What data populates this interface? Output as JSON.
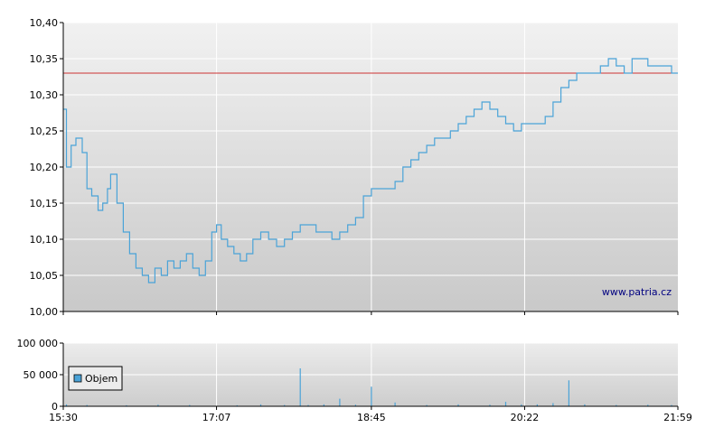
{
  "chart_data": [
    {
      "type": "line",
      "title": "",
      "xlabel": "",
      "ylabel": "",
      "ylim": [
        10.0,
        10.4
      ],
      "y_ticks": [
        "10,00",
        "10,05",
        "10,10",
        "10,15",
        "10,20",
        "10,25",
        "10,30",
        "10,35",
        "10,40"
      ],
      "x_ticks": [
        "15:30",
        "17:07",
        "18:45",
        "20:22",
        "21:59"
      ],
      "reference_line": 10.33,
      "reference_color": "#cc3333",
      "line_color": "#4aa3d8",
      "watermark": "www.patria.cz",
      "grid": true,
      "series": [
        {
          "x": [
            "15:30",
            "15:32",
            "15:35",
            "15:38",
            "15:42",
            "15:45",
            "15:48",
            "15:52",
            "15:55",
            "15:58",
            "16:00",
            "16:04",
            "16:08",
            "16:12",
            "16:16",
            "16:20",
            "16:24",
            "16:28",
            "16:32",
            "16:36",
            "16:40",
            "16:44",
            "16:48",
            "16:52",
            "16:56",
            "17:00",
            "17:04",
            "17:07",
            "17:10",
            "17:14",
            "17:18",
            "17:22",
            "17:26",
            "17:30",
            "17:35",
            "17:40",
            "17:45",
            "17:50",
            "17:55",
            "18:00",
            "18:05",
            "18:10",
            "18:15",
            "18:20",
            "18:25",
            "18:30",
            "18:35",
            "18:40",
            "18:45",
            "18:50",
            "18:55",
            "19:00",
            "19:05",
            "19:10",
            "19:15",
            "19:20",
            "19:25",
            "19:30",
            "19:35",
            "19:40",
            "19:45",
            "19:50",
            "19:55",
            "20:00",
            "20:05",
            "20:10",
            "20:15",
            "20:20",
            "20:25",
            "20:30",
            "20:35",
            "20:40",
            "20:45",
            "20:50",
            "20:55",
            "21:00",
            "21:05",
            "21:10",
            "21:15",
            "21:20",
            "21:25",
            "21:30",
            "21:35",
            "21:40",
            "21:45",
            "21:50",
            "21:55",
            "21:59"
          ],
          "values": [
            10.28,
            10.2,
            10.23,
            10.24,
            10.22,
            10.17,
            10.16,
            10.14,
            10.15,
            10.17,
            10.19,
            10.15,
            10.11,
            10.08,
            10.06,
            10.05,
            10.04,
            10.06,
            10.05,
            10.07,
            10.06,
            10.07,
            10.08,
            10.06,
            10.05,
            10.07,
            10.11,
            10.12,
            10.1,
            10.09,
            10.08,
            10.07,
            10.08,
            10.1,
            10.11,
            10.1,
            10.09,
            10.1,
            10.11,
            10.12,
            10.12,
            10.11,
            10.11,
            10.1,
            10.11,
            10.12,
            10.13,
            10.16,
            10.17,
            10.17,
            10.17,
            10.18,
            10.2,
            10.21,
            10.22,
            10.23,
            10.24,
            10.24,
            10.25,
            10.26,
            10.27,
            10.28,
            10.29,
            10.28,
            10.27,
            10.26,
            10.25,
            10.26,
            10.26,
            10.26,
            10.27,
            10.29,
            10.31,
            10.32,
            10.33,
            10.33,
            10.33,
            10.34,
            10.35,
            10.34,
            10.33,
            10.35,
            10.35,
            10.34,
            10.34,
            10.34,
            10.33,
            10.33
          ]
        }
      ]
    },
    {
      "type": "bar",
      "title": "",
      "xlabel": "",
      "ylabel": "",
      "ylim": [
        0,
        100000
      ],
      "y_ticks": [
        "0",
        "50 000",
        "100 000"
      ],
      "x_ticks": [
        "15:30",
        "17:07",
        "18:45",
        "20:22",
        "21:59"
      ],
      "bar_color": "#4aa3d8",
      "legend": "top-left",
      "series": [
        {
          "name": "Objem",
          "x": [
            "15:32",
            "15:45",
            "16:10",
            "16:30",
            "16:50",
            "17:20",
            "17:35",
            "17:50",
            "18:00",
            "18:05",
            "18:15",
            "18:25",
            "18:35",
            "18:45",
            "19:00",
            "19:20",
            "19:40",
            "20:00",
            "20:10",
            "20:20",
            "20:30",
            "20:40",
            "20:50",
            "21:00",
            "21:20",
            "21:40",
            "21:55"
          ],
          "values": [
            3000,
            2000,
            1500,
            2500,
            2000,
            1500,
            3000,
            2000,
            60000,
            2000,
            3000,
            12000,
            2500,
            31000,
            6000,
            2000,
            3000,
            2500,
            7000,
            3000,
            3000,
            5000,
            41000,
            3000,
            2000,
            2500,
            2000
          ]
        }
      ]
    }
  ]
}
